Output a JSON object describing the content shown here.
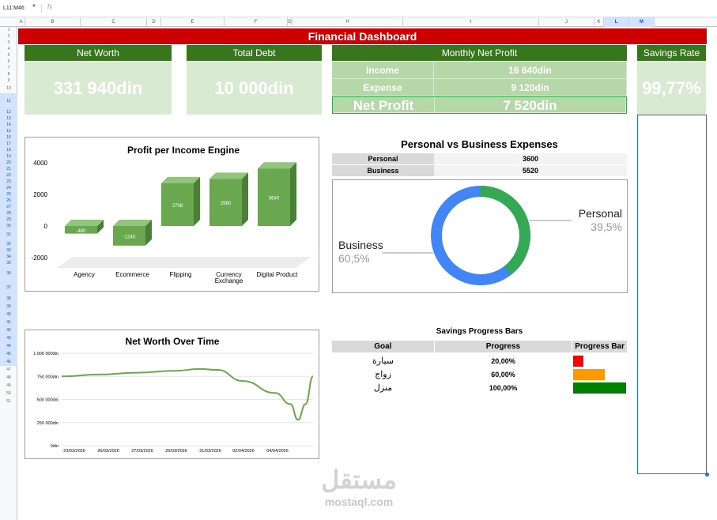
{
  "formula_bar": {
    "name_box": "L11:M46",
    "fx_symbol": "fx"
  },
  "columns": [
    "A",
    "B",
    "C",
    "D",
    "E",
    "F",
    "G",
    "H",
    "I",
    "J",
    "K",
    "L",
    "M"
  ],
  "rows": [
    "1",
    "2",
    "3",
    "4",
    "5",
    "6",
    "7",
    "8",
    "9",
    "10",
    "11",
    "12",
    "13",
    "14",
    "15",
    "16",
    "17",
    "18",
    "19",
    "20",
    "21",
    "22",
    "23",
    "24",
    "25",
    "26",
    "27",
    "28",
    "29",
    "30",
    "31",
    "32",
    "33",
    "34",
    "35",
    "36",
    "37",
    "38",
    "39",
    "40",
    "41",
    "42",
    "43",
    "44",
    "45",
    "46",
    "47",
    "48",
    "49",
    "50",
    "51"
  ],
  "dashboard_title": "Financial Dashboard",
  "net_worth": {
    "label": "Net Worth",
    "value": "331 940din"
  },
  "total_debt": {
    "label": "Total Debt",
    "value": "10 000din"
  },
  "monthly": {
    "label": "Monthly Net Profit",
    "rows": [
      {
        "label": "Income",
        "value": "16 640din"
      },
      {
        "label": "Expense",
        "value": "9 120din"
      },
      {
        "label": "Net Profit",
        "value": "7 520din"
      }
    ]
  },
  "savings_rate": {
    "label": "Savings Rate",
    "value": "99,77%"
  },
  "colors": {
    "title_red": "#cc0000",
    "header_green": "#38761d",
    "kpi_bg": "#d9ead3",
    "bar_green": "#6aa84f",
    "donut_blue": "#4285f4",
    "donut_green": "#34a853"
  },
  "chart_data": [
    {
      "type": "bar",
      "title": "Profit per Income Engine",
      "categories": [
        "Agency",
        "Ecommerce",
        "Flipping",
        "Currency Exchange",
        "Digital Product"
      ],
      "category_lines": [
        [
          "Agency"
        ],
        [
          "Ecommerce"
        ],
        [
          "Flipping"
        ],
        [
          "Currency",
          "Exchange"
        ],
        [
          "Digital Product"
        ]
      ],
      "values": [
        -480,
        -1240,
        2708,
        2980,
        3640
      ],
      "value_labels": [
        "-480",
        "-1240",
        "2708",
        "2980",
        "3640"
      ],
      "ylim": [
        -2000,
        4000
      ],
      "yticks": [
        "4000",
        "2000",
        "0",
        "-2000"
      ],
      "style": "3d"
    },
    {
      "type": "pie",
      "title": "Personal vs Business Expenses",
      "donut": true,
      "categories": [
        "Personal",
        "Business"
      ],
      "values": [
        3600,
        5520
      ],
      "percent_labels": [
        "39,5%",
        "60,5%"
      ]
    },
    {
      "type": "line",
      "title": "Net Worth Over Time",
      "x": [
        "23/03/2026",
        "26/03/2026",
        "27/03/2026",
        "29/03/2026",
        "31/03/2026",
        "02/04/2026",
        "04/04/2026"
      ],
      "yticks": [
        "1 000 000din",
        "750 000din",
        "500 000din",
        "250 000din",
        "0din"
      ],
      "ylim": [
        0,
        1000000
      ],
      "points": [
        [
          0,
          750000
        ],
        [
          0.15,
          770000
        ],
        [
          0.3,
          790000
        ],
        [
          0.45,
          810000
        ],
        [
          0.55,
          830000
        ],
        [
          0.62,
          820000
        ],
        [
          0.72,
          700000
        ],
        [
          0.85,
          570000
        ],
        [
          0.91,
          450000
        ],
        [
          0.94,
          280000
        ],
        [
          0.97,
          450000
        ],
        [
          1.0,
          750000
        ]
      ]
    }
  ],
  "expense_table": {
    "rows": [
      {
        "label": "Personal",
        "value": "3600"
      },
      {
        "label": "Business",
        "value": "5520"
      }
    ]
  },
  "savings": {
    "title": "Savings Progress Bars",
    "headers": [
      "Goal",
      "Progress",
      "Progress Bar"
    ],
    "items": [
      {
        "goal": "سيارة",
        "progress": "20,00%",
        "fraction": 0.2,
        "color": "#ff0000"
      },
      {
        "goal": "زواج",
        "progress": "60,00%",
        "fraction": 0.6,
        "color": "#ff9900"
      },
      {
        "goal": "منزل",
        "progress": "100,00%",
        "fraction": 1.0,
        "color": "#008000"
      }
    ]
  },
  "watermark": {
    "arabic": "مستقل",
    "latin": "mostaql.com"
  }
}
